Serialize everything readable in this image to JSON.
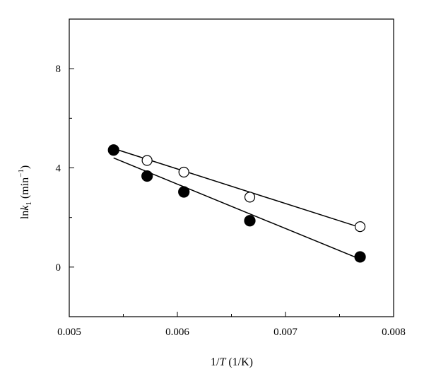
{
  "chart_data": {
    "type": "scatter",
    "xlabel": {
      "prefix": "1/",
      "italic": "T",
      "suffix": " (1/K)"
    },
    "ylabel": {
      "prefix": "ln",
      "italic": "k",
      "sub": "1",
      "unit_open": " (min",
      "sup": "−1",
      "unit_close": ")"
    },
    "xlim": [
      0.005,
      0.008
    ],
    "ylim": [
      -2,
      10
    ],
    "xticks": [
      0.005,
      0.006,
      0.007,
      0.008
    ],
    "xtick_labels": [
      "0.005",
      "0.006",
      "0.007",
      "0.008"
    ],
    "yticks": [
      0,
      4,
      8
    ],
    "ytick_labels": [
      "0",
      "4",
      "8"
    ],
    "grid": false,
    "series": [
      {
        "marker": "filled-circle",
        "x": [
          0.00541,
          0.00572,
          0.00606,
          0.00667,
          0.00769
        ],
        "y": [
          4.72,
          3.67,
          3.03,
          1.87,
          0.41
        ],
        "fit": {
          "x": [
            0.00541,
            0.00769
          ],
          "y": [
            4.4,
            0.32
          ]
        }
      },
      {
        "marker": "open-circle",
        "x": [
          0.00572,
          0.00606,
          0.00667,
          0.00769
        ],
        "y": [
          4.3,
          3.83,
          2.82,
          1.63
        ],
        "fit": {
          "x": [
            0.00541,
            0.00769
          ],
          "y": [
            4.78,
            1.6
          ]
        }
      }
    ]
  }
}
